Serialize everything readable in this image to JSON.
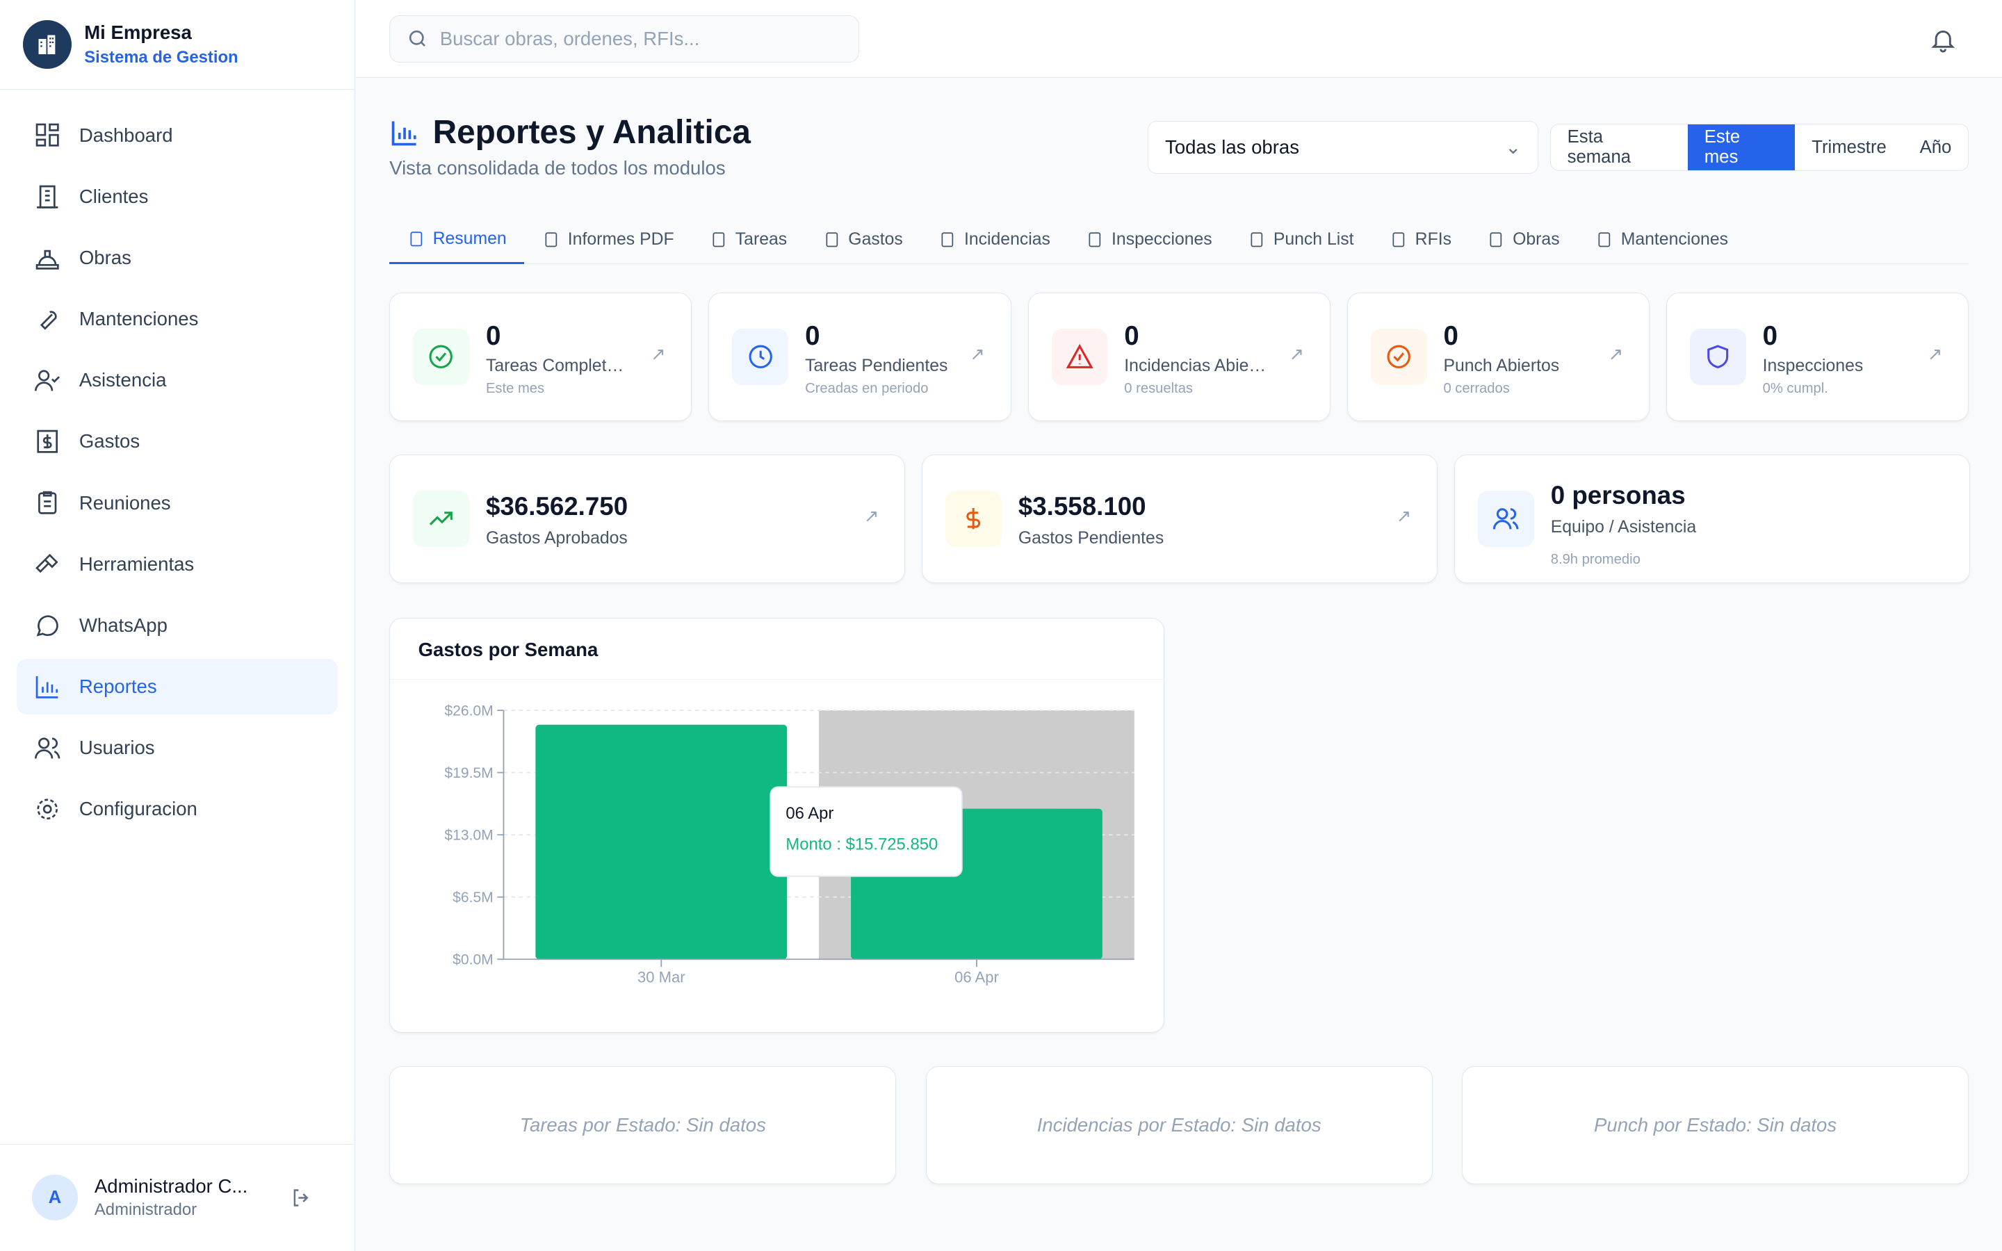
{
  "sidebar": {
    "company": "Mi Empresa",
    "subtitle": "Sistema de Gestion",
    "items": [
      {
        "label": "Dashboard"
      },
      {
        "label": "Clientes"
      },
      {
        "label": "Obras"
      },
      {
        "label": "Mantenciones"
      },
      {
        "label": "Asistencia"
      },
      {
        "label": "Gastos"
      },
      {
        "label": "Reuniones"
      },
      {
        "label": "Herramientas"
      },
      {
        "label": "WhatsApp"
      },
      {
        "label": "Reportes"
      },
      {
        "label": "Usuarios"
      },
      {
        "label": "Configuracion"
      }
    ],
    "user": {
      "initial": "A",
      "name": "Administrador C...",
      "role": "Administrador"
    }
  },
  "topbar": {
    "search_placeholder": "Buscar obras, ordenes, RFIs..."
  },
  "page": {
    "title": "Reportes y Analitica",
    "subtitle": "Vista consolidada de todos los modulos",
    "project_select": "Todas las obras",
    "periods": [
      "Esta semana",
      "Este mes",
      "Trimestre",
      "Año"
    ],
    "active_period": "Este mes",
    "tabs": [
      "Resumen",
      "Informes PDF",
      "Tareas",
      "Gastos",
      "Incidencias",
      "Inspecciones",
      "Punch List",
      "RFIs",
      "Obras",
      "Mantenciones"
    ]
  },
  "kpis": [
    {
      "value": "0",
      "label": "Tareas Completadas",
      "detail": "Este mes",
      "color": "#16a34a"
    },
    {
      "value": "0",
      "label": "Tareas Pendientes",
      "detail": "Creadas en periodo",
      "color": "#2563eb"
    },
    {
      "value": "0",
      "label": "Incidencias Abiertas",
      "detail": "0 resueltas",
      "color": "#dc2626"
    },
    {
      "value": "0",
      "label": "Punch Abiertos",
      "detail": "0 cerrados",
      "color": "#ea580c"
    },
    {
      "value": "0",
      "label": "Inspecciones",
      "detail": "0% cumpl.",
      "color": "#4f46e5"
    }
  ],
  "summary": [
    {
      "value": "$36.562.750",
      "label": "Gastos Aprobados"
    },
    {
      "value": "$3.558.100",
      "label": "Gastos Pendientes"
    },
    {
      "value": "0 personas",
      "label": "Equipo / Asistencia",
      "detail": "8.9h promedio"
    }
  ],
  "chart_data": {
    "type": "bar",
    "title": "Gastos por Semana",
    "categories": [
      "30 Mar",
      "06 Apr"
    ],
    "series": [
      {
        "name": "Monto",
        "values": [
          24500000,
          15725850
        ],
        "color": "#10b981"
      }
    ],
    "ylim": [
      0,
      26000000
    ],
    "yticks": [
      "$0.0M",
      "$6.5M",
      "$13.0M",
      "$19.5M",
      "$26.0M"
    ],
    "tooltip": {
      "title": "06 Apr",
      "text": "Monto : $15.725.850"
    },
    "grid": true
  },
  "empty_charts": [
    "Tareas por Estado: Sin datos",
    "Incidencias por Estado: Sin datos",
    "Punch por Estado: Sin datos"
  ]
}
